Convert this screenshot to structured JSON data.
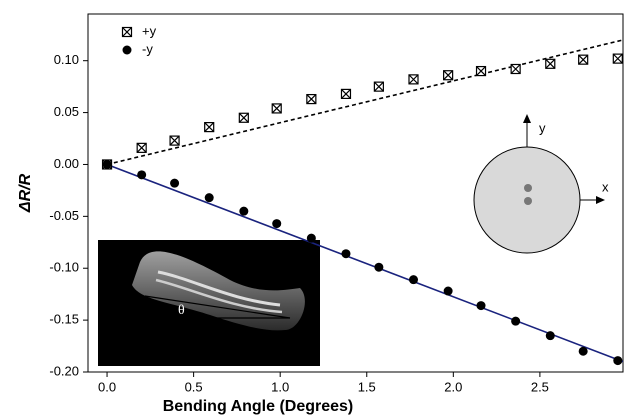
{
  "chart_data": {
    "type": "scatter",
    "x_label": "Bending Angle (Degrees)",
    "y_label": "ΔR/R",
    "x": [
      0,
      0.2,
      0.39,
      0.59,
      0.79,
      0.98,
      1.18,
      1.38,
      1.57,
      1.77,
      1.97,
      2.16,
      2.36,
      2.56,
      2.75,
      2.95
    ],
    "series": [
      {
        "name": "+y",
        "color": "#000000",
        "marker": "boxed-x",
        "values": [
          0,
          0.016,
          0.023,
          0.036,
          0.045,
          0.054,
          0.063,
          0.068,
          0.075,
          0.082,
          0.086,
          0.09,
          0.092,
          0.097,
          0.101,
          0.102
        ]
      },
      {
        "name": "-y",
        "color": "#000000",
        "marker": "circle",
        "values": [
          0,
          -0.01,
          -0.018,
          -0.032,
          -0.045,
          -0.057,
          -0.071,
          -0.086,
          -0.099,
          -0.111,
          -0.122,
          -0.136,
          -0.151,
          -0.165,
          -0.18,
          -0.189
        ]
      }
    ],
    "fit_lines": [
      {
        "x": [
          0,
          2.98
        ],
        "values": [
          0,
          0.12
        ],
        "color": "#000000",
        "dashed": true
      },
      {
        "x": [
          0,
          2.98
        ],
        "values": [
          0,
          -0.19
        ],
        "color": "#1a237e",
        "dashed": false
      }
    ],
    "xlim": [
      -0.11,
      2.98
    ],
    "ylim": [
      -0.2,
      0.145
    ],
    "xticks": [
      {
        "value": 0,
        "label": "0.0"
      },
      {
        "value": 0.5,
        "label": "0.5"
      },
      {
        "value": 1,
        "label": "1.0"
      },
      {
        "value": 1.5,
        "label": "1.5"
      },
      {
        "value": 2,
        "label": "2.0"
      },
      {
        "value": 2.5,
        "label": "2.5"
      }
    ],
    "yticks": [
      {
        "value": -0.2,
        "label": "-0.20"
      },
      {
        "value": -0.15,
        "label": "-0.15"
      },
      {
        "value": -0.1,
        "label": "-0.10"
      },
      {
        "value": -0.05,
        "label": "-0.05"
      },
      {
        "value": 0,
        "label": "0.00"
      },
      {
        "value": 0.05,
        "label": "0.05"
      },
      {
        "value": 0.1,
        "label": "0.10"
      }
    ],
    "grid": false,
    "legend_position": "upper-left"
  },
  "inset": {
    "theta": "θ"
  },
  "cross_section": {
    "y_axis": "y",
    "x_axis": "x"
  }
}
